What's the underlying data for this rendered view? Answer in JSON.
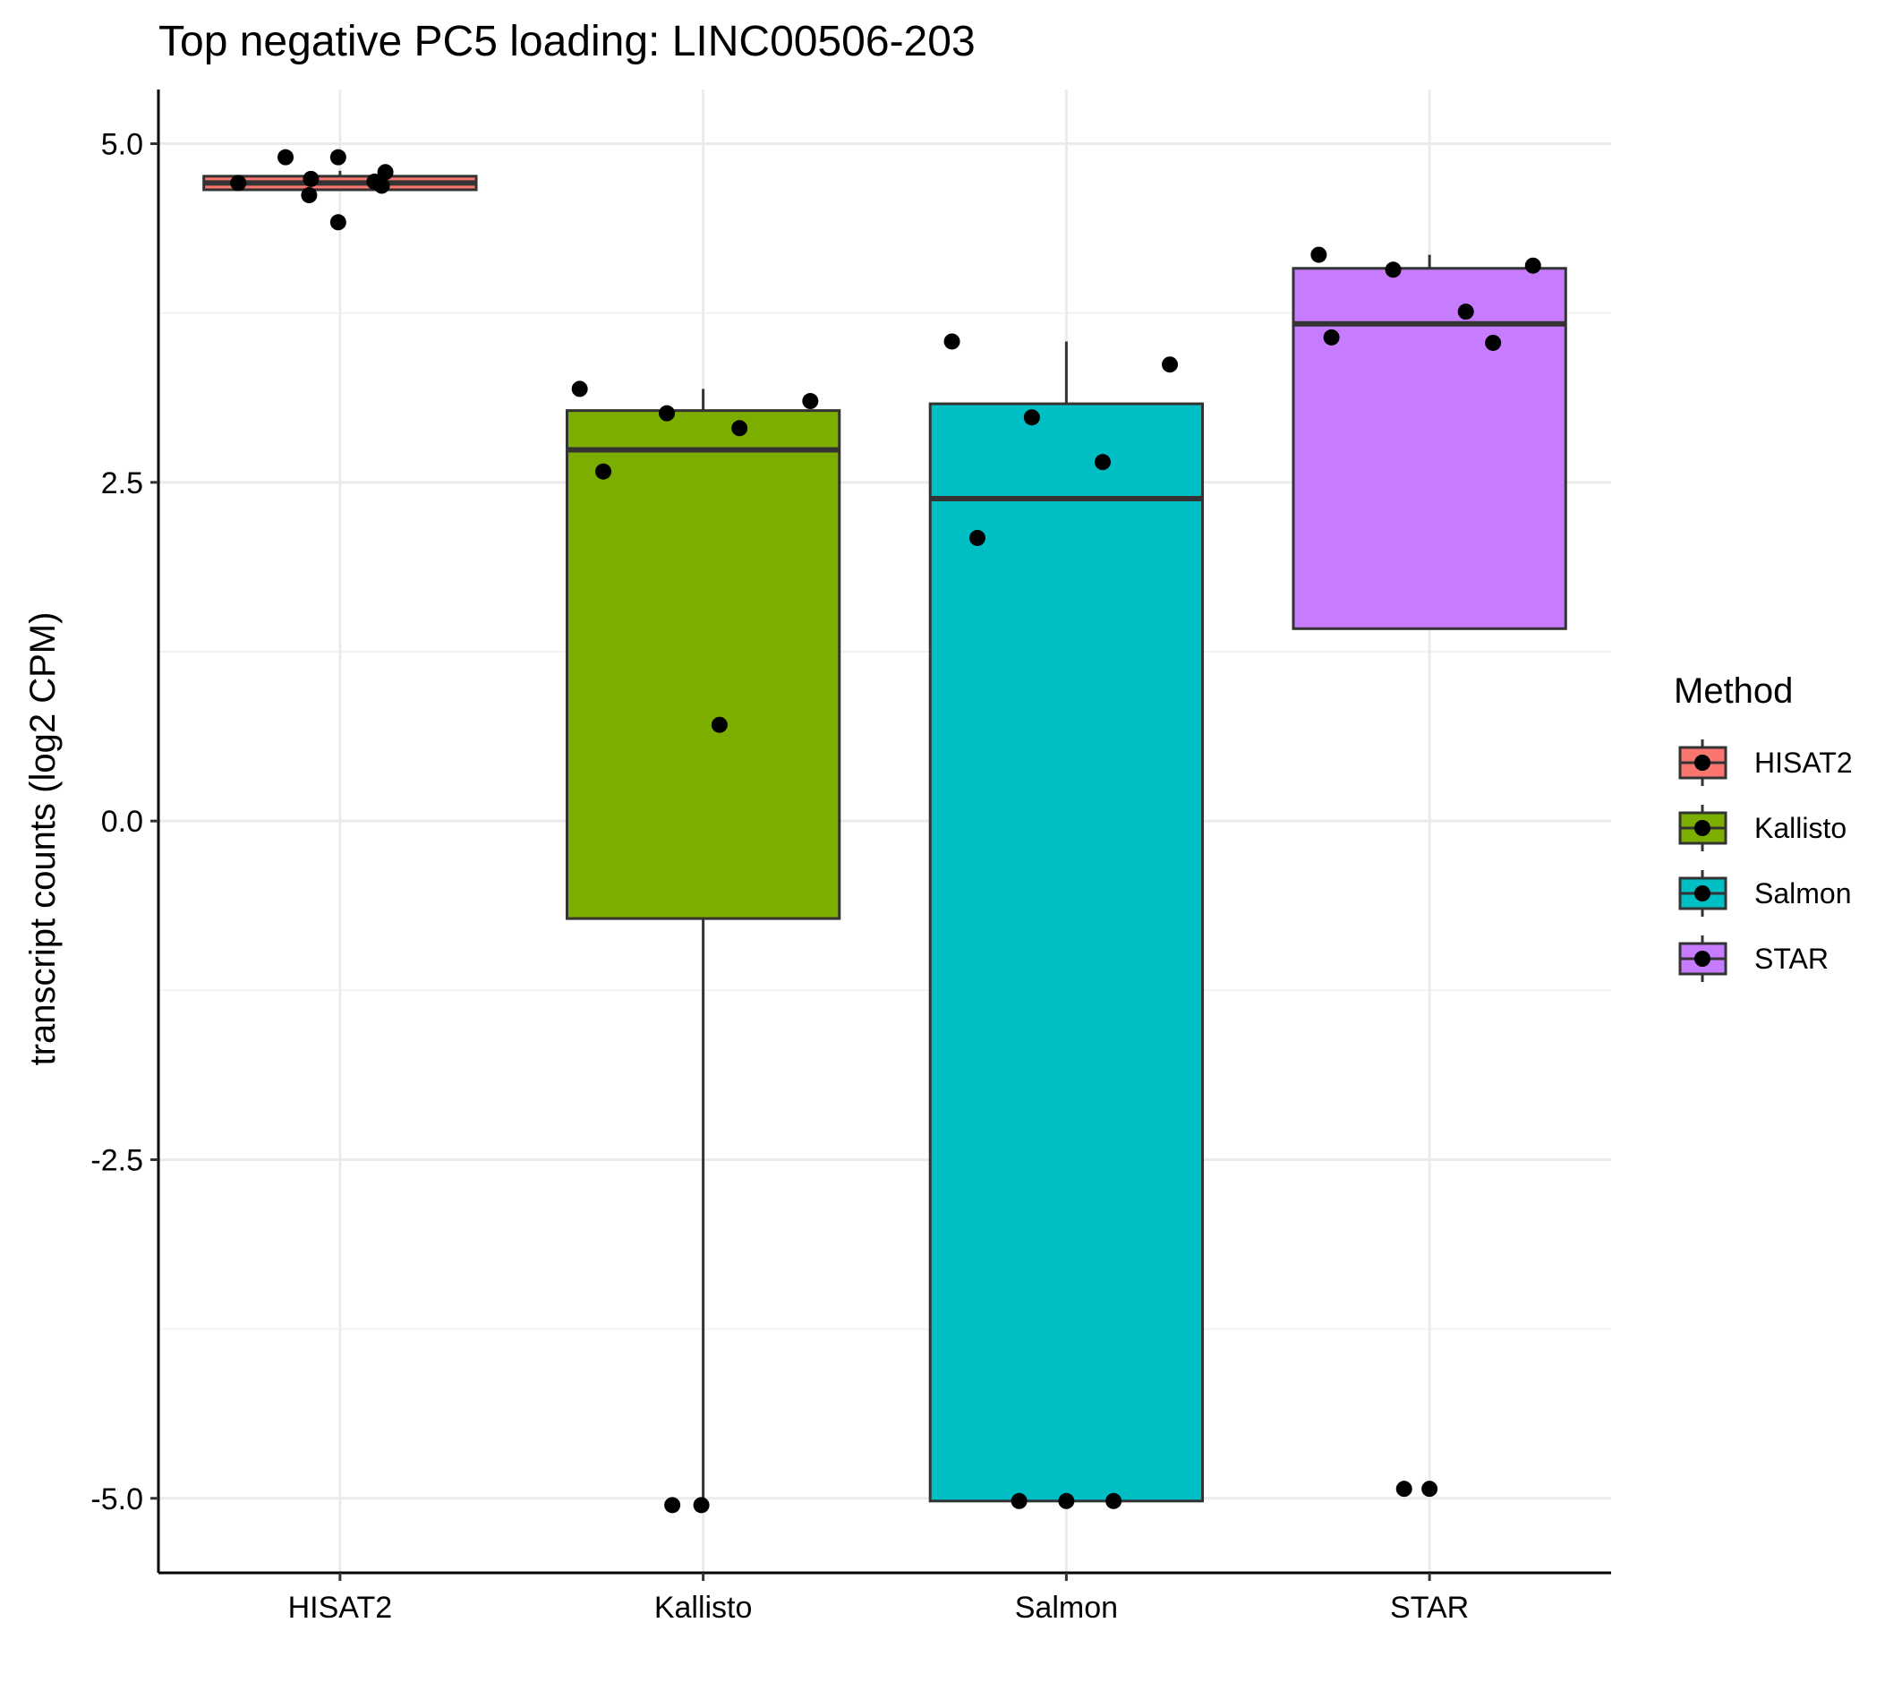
{
  "chart_data": {
    "type": "boxplot",
    "title": "Top negative PC5 loading: LINC00506-203",
    "xlabel": "",
    "ylabel": "transcript counts (log2 CPM)",
    "ylim": [
      -5.55,
      5.4
    ],
    "yticks": [
      5.0,
      2.5,
      0.0,
      -2.5,
      -5.0
    ],
    "ytick_labels": [
      "5.0",
      "2.5",
      "0.0",
      "-2.5",
      "-5.0"
    ],
    "minor_grid": [
      3.75,
      1.25,
      -1.25,
      -3.75
    ],
    "grid": true,
    "categories": [
      "HISAT2",
      "Kallisto",
      "Salmon",
      "STAR"
    ],
    "colors": [
      "#F8766D",
      "#7CAE00",
      "#00BFC4",
      "#C77CFF"
    ],
    "boxes": [
      {
        "name": "HISAT2",
        "q1": 4.66,
        "median": 4.71,
        "q3": 4.76,
        "whisker_low": 4.66,
        "whisker_high": 4.8,
        "points": [
          {
            "dx": -0.28,
            "y": 4.71
          },
          {
            "dx": -0.15,
            "y": 4.9
          },
          {
            "dx": -0.08,
            "y": 4.74
          },
          {
            "dx": -0.085,
            "y": 4.62
          },
          {
            "dx": -0.005,
            "y": 4.42
          },
          {
            "dx": -0.005,
            "y": 4.9
          },
          {
            "dx": 0.095,
            "y": 4.72
          },
          {
            "dx": 0.115,
            "y": 4.69
          },
          {
            "dx": 0.125,
            "y": 4.79
          }
        ]
      },
      {
        "name": "Kallisto",
        "q1": -0.72,
        "median": 2.74,
        "q3": 3.03,
        "whisker_low": -5.05,
        "whisker_high": 3.19,
        "points": [
          {
            "dx": -0.34,
            "y": 3.19
          },
          {
            "dx": -0.275,
            "y": 2.58
          },
          {
            "dx": -0.1,
            "y": 3.01
          },
          {
            "dx": 0.1,
            "y": 2.9
          },
          {
            "dx": 0.295,
            "y": 3.1
          },
          {
            "dx": 0.045,
            "y": 0.71
          },
          {
            "dx": -0.085,
            "y": -5.05
          },
          {
            "dx": -0.005,
            "y": -5.05
          }
        ]
      },
      {
        "name": "Salmon",
        "q1": -5.02,
        "median": 2.38,
        "q3": 3.08,
        "whisker_low": -5.02,
        "whisker_high": 3.54,
        "points": [
          {
            "dx": -0.315,
            "y": 3.54
          },
          {
            "dx": 0.285,
            "y": 3.37
          },
          {
            "dx": -0.095,
            "y": 2.98
          },
          {
            "dx": 0.1,
            "y": 2.65
          },
          {
            "dx": -0.245,
            "y": 2.09
          },
          {
            "dx": -0.13,
            "y": -5.02
          },
          {
            "dx": 0.0,
            "y": -5.02
          },
          {
            "dx": 0.13,
            "y": -5.02
          }
        ]
      },
      {
        "name": "STAR",
        "q1": 1.42,
        "median": 3.67,
        "q3": 4.08,
        "whisker_low": 1.42,
        "whisker_high": 4.18,
        "points": [
          {
            "dx": -0.305,
            "y": 4.18
          },
          {
            "dx": -0.1,
            "y": 4.07
          },
          {
            "dx": 0.285,
            "y": 4.1
          },
          {
            "dx": 0.1,
            "y": 3.76
          },
          {
            "dx": -0.27,
            "y": 3.57
          },
          {
            "dx": 0.175,
            "y": 3.53
          },
          {
            "dx": -0.07,
            "y": -4.93
          },
          {
            "dx": 0.0,
            "y": -4.93
          }
        ]
      }
    ],
    "legend": {
      "title": "Method",
      "position": "right",
      "items": [
        "HISAT2",
        "Kallisto",
        "Salmon",
        "STAR"
      ]
    }
  }
}
